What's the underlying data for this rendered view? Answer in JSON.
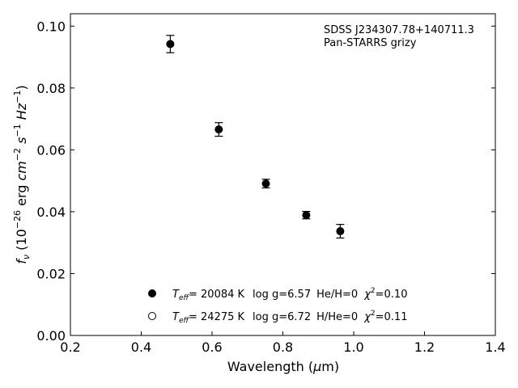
{
  "chart_data": {
    "type": "scatter",
    "annotation": [
      "SDSS J234307.78+140711.3",
      "Pan-STARRS grizy"
    ],
    "xlabel": "Wavelength (μm)",
    "ylabel": "f_ν (10^-26 erg cm^-2 s^-1 Hz^-1)",
    "xlim": [
      0.2,
      1.4
    ],
    "ylim": [
      0.0,
      0.104
    ],
    "xticks": [
      "0.2",
      "0.4",
      "0.6",
      "0.8",
      "1.0",
      "1.2",
      "1.4"
    ],
    "yticks": [
      "0.00",
      "0.02",
      "0.04",
      "0.06",
      "0.08",
      "0.10"
    ],
    "grid": false,
    "legend_position": "bottom-center",
    "series": [
      {
        "marker": "filled-circle",
        "color": "#000000",
        "x": [
          0.482,
          0.619,
          0.752,
          0.866,
          0.962
        ],
        "y": [
          0.0942,
          0.0666,
          0.0491,
          0.0389,
          0.0337
        ],
        "yerr": [
          0.0028,
          0.0022,
          0.0014,
          0.0012,
          0.0022
        ]
      },
      {
        "marker": "open-circle",
        "color": "#000000",
        "x": [],
        "y": []
      }
    ],
    "legend": [
      {
        "marker": "filled",
        "teff": "= 20084 K",
        "logg": "log g=6.57",
        "comp": "He/H=0",
        "chi": "=0.10"
      },
      {
        "marker": "open",
        "teff": "= 24275 K",
        "logg": "log g=6.72",
        "comp": "H/He=0",
        "chi": "=0.11"
      }
    ]
  }
}
